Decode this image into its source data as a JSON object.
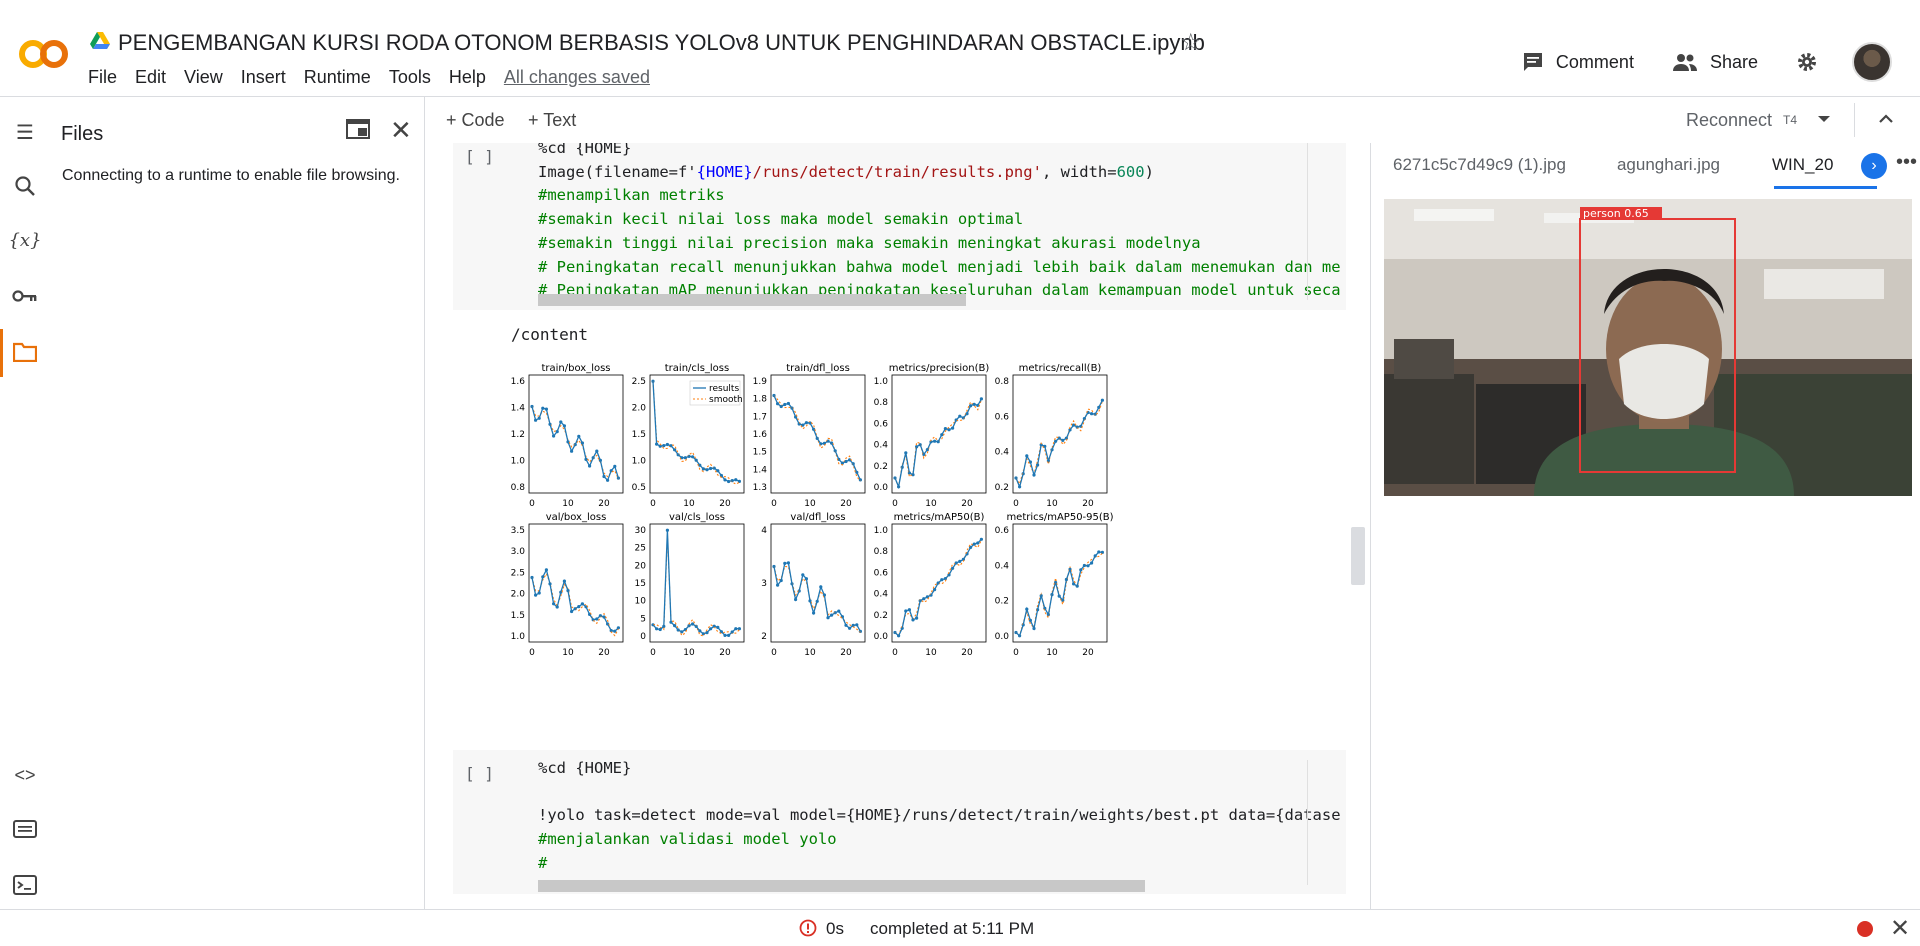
{
  "header": {
    "logo": "CO",
    "title": "PENGEMBANGAN KURSI RODA OTONOM BERBASIS YOLOv8 UNTUK PENGHINDARAN OBSTACLE.ipynb",
    "menu": [
      "File",
      "Edit",
      "View",
      "Insert",
      "Runtime",
      "Tools",
      "Help"
    ],
    "saved": "All changes saved",
    "comment": "Comment",
    "share": "Share"
  },
  "files_panel": {
    "title": "Files",
    "message": "Connecting to a runtime to enable file browsing."
  },
  "toolbar": {
    "add_code": "Code",
    "add_text": "Text",
    "reconnect": "Reconnect",
    "runtime": "T4"
  },
  "cells": {
    "cell1": {
      "run": "[ ]",
      "line0": "%cd {HOME}",
      "line1a": "Image(filename=f'",
      "line1b": "{HOME}",
      "line1c": "/runs/detect/train/results.png'",
      "line1d": ", width=",
      "line1e": "600",
      "line1f": ")",
      "c1": "#menampilkan metriks",
      "c2": "#semakin kecil nilai loss maka model semakin optimal",
      "c3": "#semakin tinggi nilai precision maka semakin meningkat akurasi modelnya",
      "c4": "# Peningkatan recall menunjukkan bahwa model menjadi lebih baik dalam menemukan dan me",
      "c5": "# Peningkatan mAP menunjukkan peningkatan keseluruhan dalam kemampuan model untuk seca",
      "output": "/content"
    },
    "cell2": {
      "run": "[ ]",
      "line0": "%cd {HOME}",
      "line1": "!yolo task=detect mode=val model={HOME}/runs/detect/train/weights/best.pt data={datase",
      "c1": "#menjalankan validasi model yolo",
      "c2": "#"
    }
  },
  "plots_image": {
    "titles": [
      "train/box_loss",
      "train/cls_loss",
      "train/dfl_loss",
      "metrics/precision(B)",
      "metrics/recall(B)",
      "val/box_loss",
      "val/cls_loss",
      "val/dfl_loss",
      "metrics/mAP50(B)",
      "metrics/mAP50-95(B)"
    ],
    "legend": [
      "results",
      "smooth"
    ],
    "xticks": [
      "0",
      "10",
      "20"
    ],
    "yticks": [
      [
        "1.6",
        "1.4",
        "1.2",
        "1.0",
        "0.8"
      ],
      [
        "2.5",
        "2.0",
        "1.5",
        "1.0",
        "0.5"
      ],
      [
        "1.9",
        "1.8",
        "1.7",
        "1.6",
        "1.5",
        "1.4",
        "1.3"
      ],
      [
        "1.0",
        "0.8",
        "0.6",
        "0.4",
        "0.2",
        "0.0"
      ],
      [
        "0.8",
        "0.6",
        "0.4",
        "0.2"
      ],
      [
        "3.5",
        "3.0",
        "2.5",
        "2.0",
        "1.5",
        "1.0"
      ],
      [
        "30",
        "25",
        "20",
        "15",
        "10",
        "5",
        "0"
      ],
      [
        "4",
        "3",
        "2"
      ],
      [
        "1.0",
        "0.8",
        "0.6",
        "0.4",
        "0.2",
        "0.0"
      ],
      [
        "0.6",
        "0.4",
        "0.2",
        "0.0"
      ]
    ]
  },
  "viewer": {
    "tabs": [
      "6271c5c7d49c9 (1).jpg",
      "agunghari.jpg",
      "WIN_20"
    ],
    "detection_label": "person  0.65"
  },
  "status": {
    "time": "0s",
    "completed": "completed at 5:11 PM"
  },
  "colors": {
    "accent_orange": "#e8710a",
    "link_blue": "#1a73e8",
    "record_red": "#d93025",
    "plot_blue": "#1f77b4",
    "plot_orange": "#ff7f0e"
  }
}
